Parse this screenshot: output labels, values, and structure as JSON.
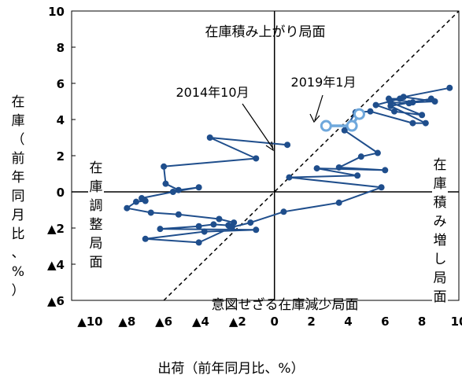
{
  "chart_data": {
    "type": "line",
    "title": "",
    "xlabel": "出荷（前年同月比、%）",
    "ylabel": "在庫（前年同月比、%）",
    "xlim": [
      -11,
      10
    ],
    "ylim": [
      -6,
      10
    ],
    "x_ticks": [
      -10,
      -8,
      -6,
      -4,
      -2,
      0,
      2,
      4,
      6,
      8,
      10
    ],
    "x_tick_labels": [
      "▲10",
      "▲8",
      "▲6",
      "▲4",
      "▲2",
      "0",
      "2",
      "4",
      "6",
      "8",
      "10"
    ],
    "y_ticks": [
      10,
      8,
      6,
      4,
      2,
      0,
      -2,
      -4,
      -6
    ],
    "y_tick_labels": [
      "10",
      "8",
      "6",
      "4",
      "2",
      "0",
      "▲2",
      "▲4",
      "▲6"
    ],
    "reference_line": "y = x (dashed)",
    "quadrant_labels": {
      "top": "在庫積み上がり局面",
      "bottom": "意図せざる在庫減少局面",
      "left": "在庫調整局面",
      "right": "在庫積み増し局面"
    },
    "annotations": [
      {
        "text": "2014年10月",
        "x": 0.7,
        "y": 2.6
      },
      {
        "text": "2019年1月",
        "x": 2.8,
        "y": 3.6
      }
    ],
    "series": [
      {
        "color": "#1f4e8c",
        "points": [
          [
            0.7,
            2.6
          ],
          [
            -3.5,
            3.0
          ],
          [
            -1.0,
            1.85
          ],
          [
            -6.0,
            1.4
          ],
          [
            -5.9,
            0.45
          ],
          [
            -5.2,
            0.1
          ],
          [
            -4.1,
            0.25
          ],
          [
            -5.5,
            0.0
          ],
          [
            -7.2,
            -0.35
          ],
          [
            -7.0,
            -0.5
          ],
          [
            -7.5,
            -0.55
          ],
          [
            -8.0,
            -0.9
          ],
          [
            -6.7,
            -1.15
          ],
          [
            -5.2,
            -1.25
          ],
          [
            -3.0,
            -1.5
          ],
          [
            -2.2,
            -1.7
          ],
          [
            -2.5,
            -1.85
          ],
          [
            -3.3,
            -1.8
          ],
          [
            -4.1,
            -1.9
          ],
          [
            -6.2,
            -2.05
          ],
          [
            -1.0,
            -2.1
          ],
          [
            -3.8,
            -2.2
          ],
          [
            -7.0,
            -2.6
          ],
          [
            -4.1,
            -2.8
          ],
          [
            -2.3,
            -1.95
          ],
          [
            -1.3,
            -1.7
          ],
          [
            0.5,
            -1.1
          ],
          [
            3.5,
            -0.6
          ],
          [
            5.8,
            0.25
          ],
          [
            0.8,
            0.8
          ],
          [
            4.5,
            0.9
          ],
          [
            2.3,
            1.3
          ],
          [
            6.0,
            1.2
          ],
          [
            3.5,
            1.35
          ],
          [
            4.7,
            1.95
          ],
          [
            5.6,
            2.15
          ],
          [
            3.8,
            3.4
          ],
          [
            4.4,
            4.4
          ],
          [
            5.2,
            4.45
          ],
          [
            7.5,
            3.8
          ],
          [
            8.2,
            3.8
          ],
          [
            6.3,
            4.75
          ],
          [
            8.5,
            5.15
          ],
          [
            7.3,
            4.9
          ],
          [
            6.3,
            4.95
          ],
          [
            8.0,
            4.25
          ],
          [
            6.5,
            4.45
          ],
          [
            5.5,
            4.8
          ],
          [
            6.8,
            5.15
          ],
          [
            6.2,
            5.15
          ],
          [
            7.5,
            4.95
          ],
          [
            8.7,
            5.0
          ],
          [
            7.0,
            5.25
          ],
          [
            9.5,
            5.75
          ]
        ]
      },
      {
        "name": "",
        "color": "#6fa8dc",
        "marker": "open-circle",
        "points": [
          [
            2.8,
            3.65
          ],
          [
            4.2,
            3.65
          ],
          [
            4.6,
            4.3
          ]
        ]
      }
    ]
  }
}
